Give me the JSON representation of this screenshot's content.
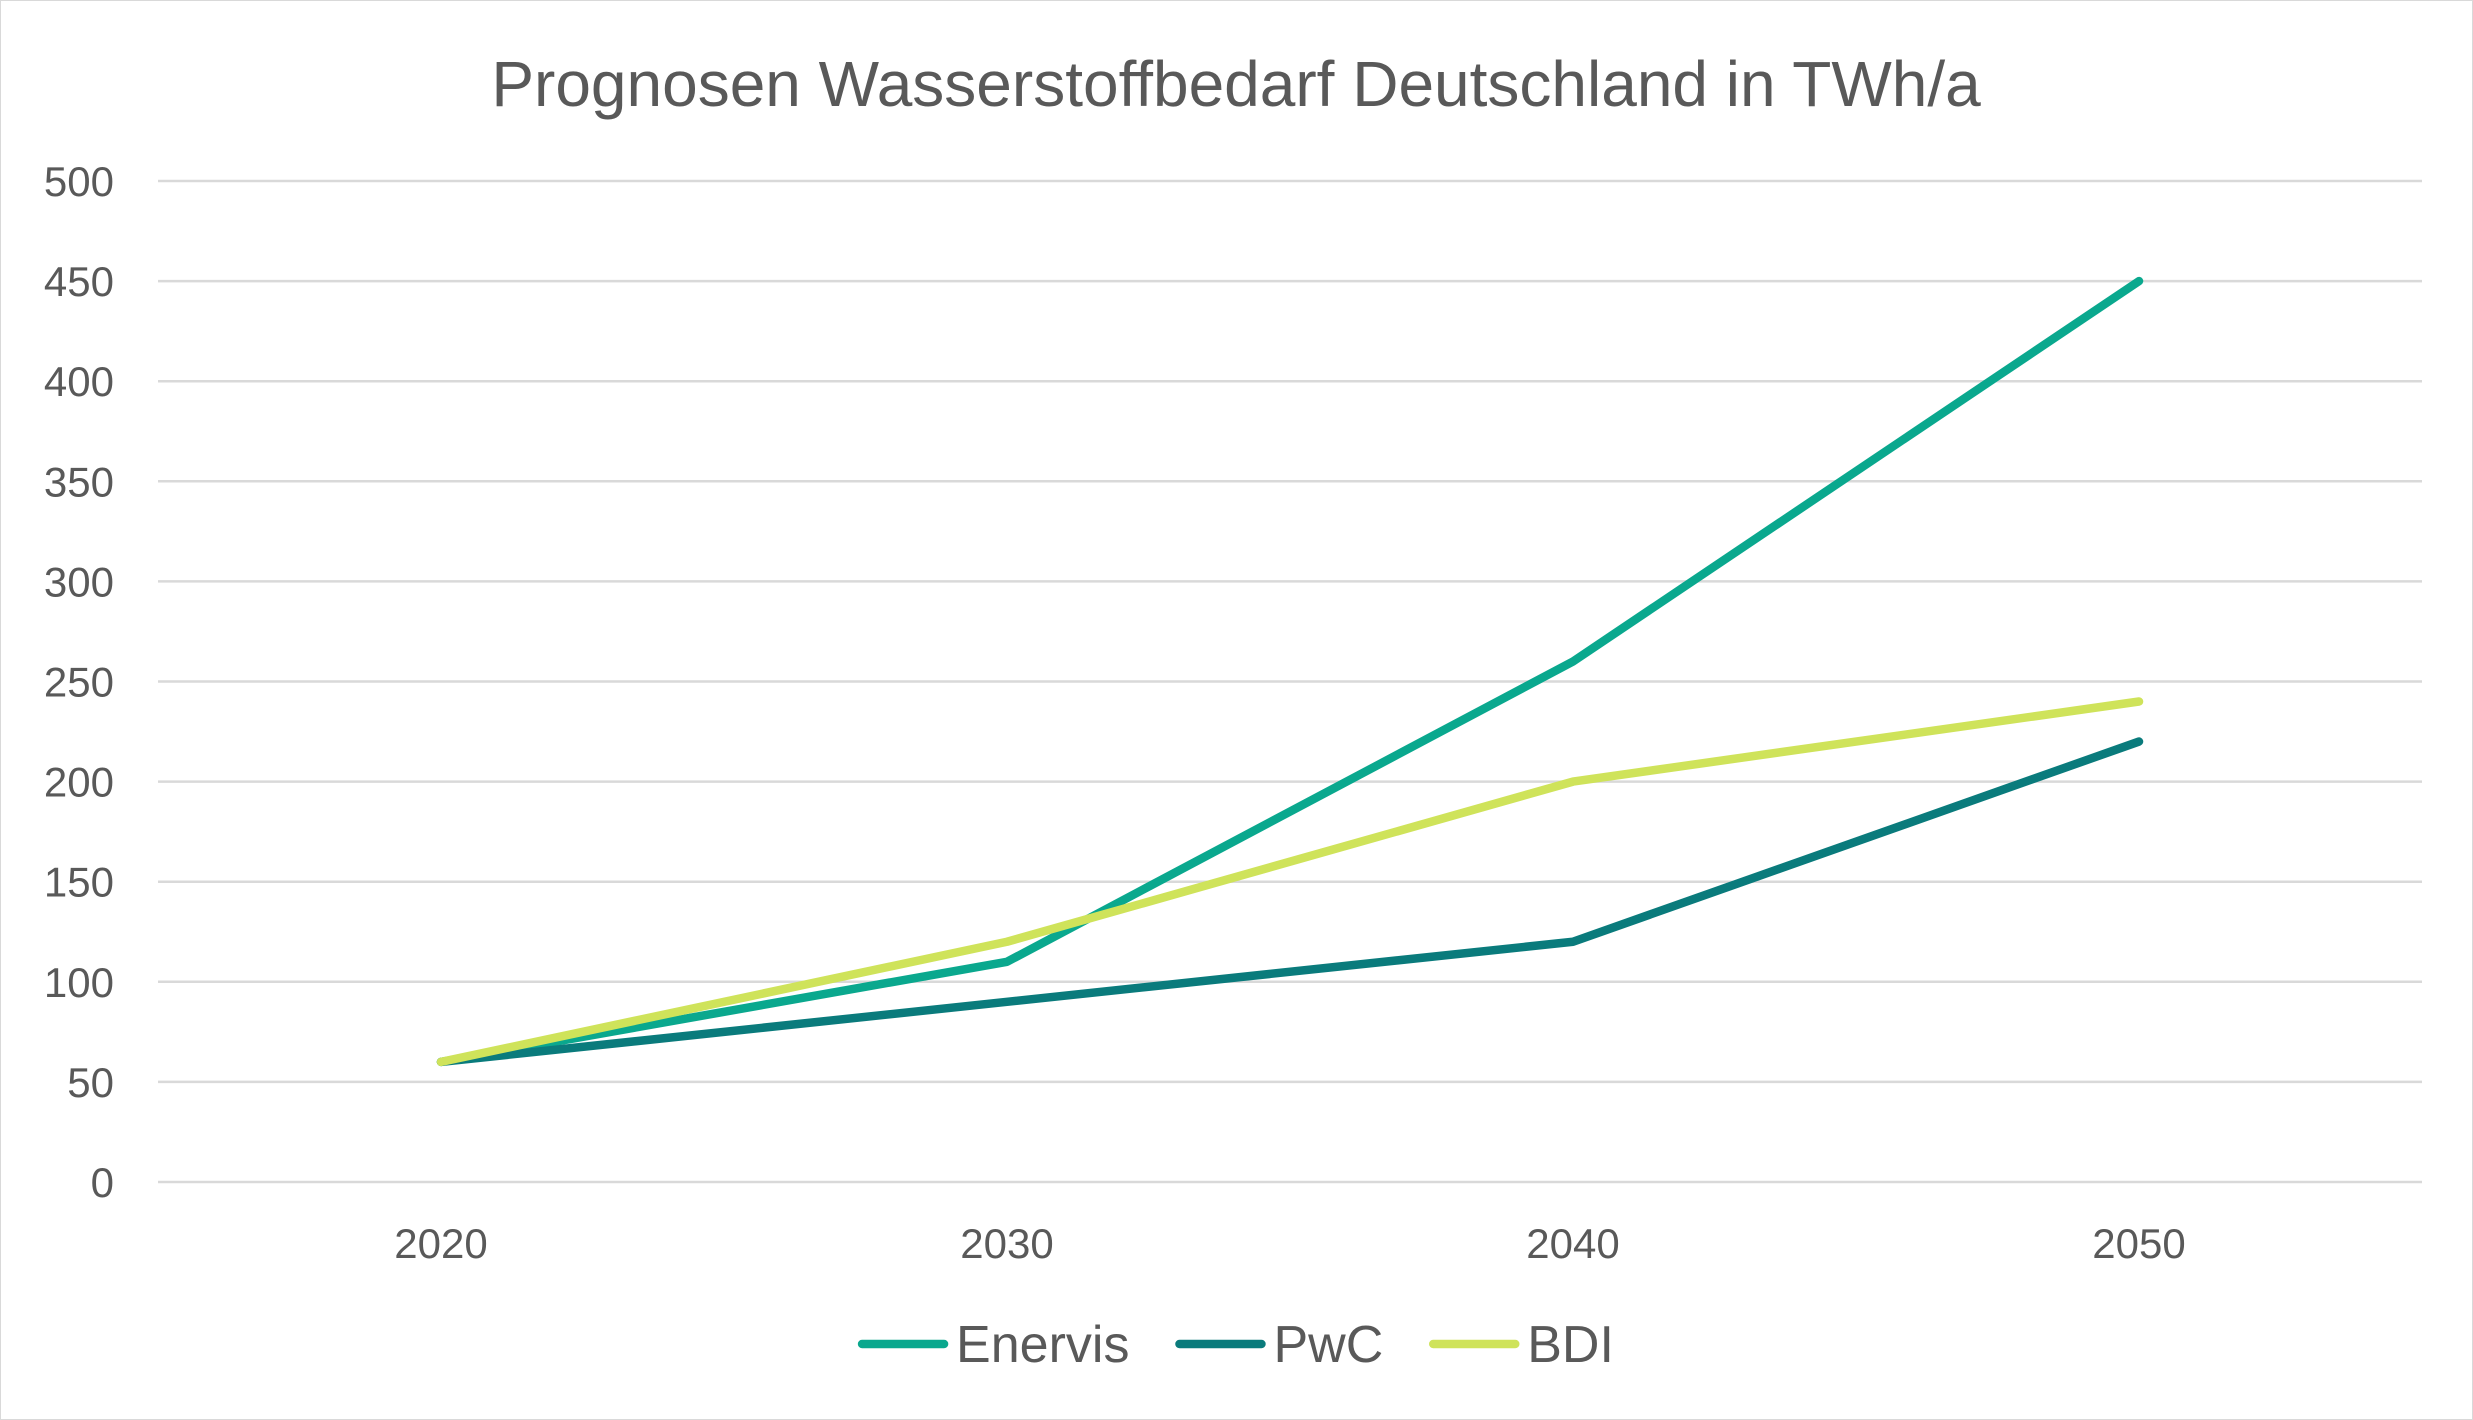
{
  "chart_data": {
    "type": "line",
    "title": "Prognosen Wasserstoffbedarf Deutschland in TWh/a",
    "xlabel": "",
    "ylabel": "",
    "categories": [
      "2020",
      "2030",
      "2040",
      "2050"
    ],
    "ylim": [
      0,
      500
    ],
    "yticks": [
      "0",
      "50",
      "100",
      "150",
      "200",
      "250",
      "300",
      "350",
      "400",
      "450",
      "500"
    ],
    "grid": true,
    "legend_position": "bottom",
    "series": [
      {
        "name": "Enervis",
        "color": "#0aa88e",
        "values": [
          60,
          110,
          260,
          450
        ]
      },
      {
        "name": "PwC",
        "color": "#0a7b7c",
        "values": [
          60,
          90,
          120,
          220
        ]
      },
      {
        "name": "BDI",
        "color": "#cfe35a",
        "values": [
          60,
          120,
          200,
          240
        ]
      }
    ]
  }
}
